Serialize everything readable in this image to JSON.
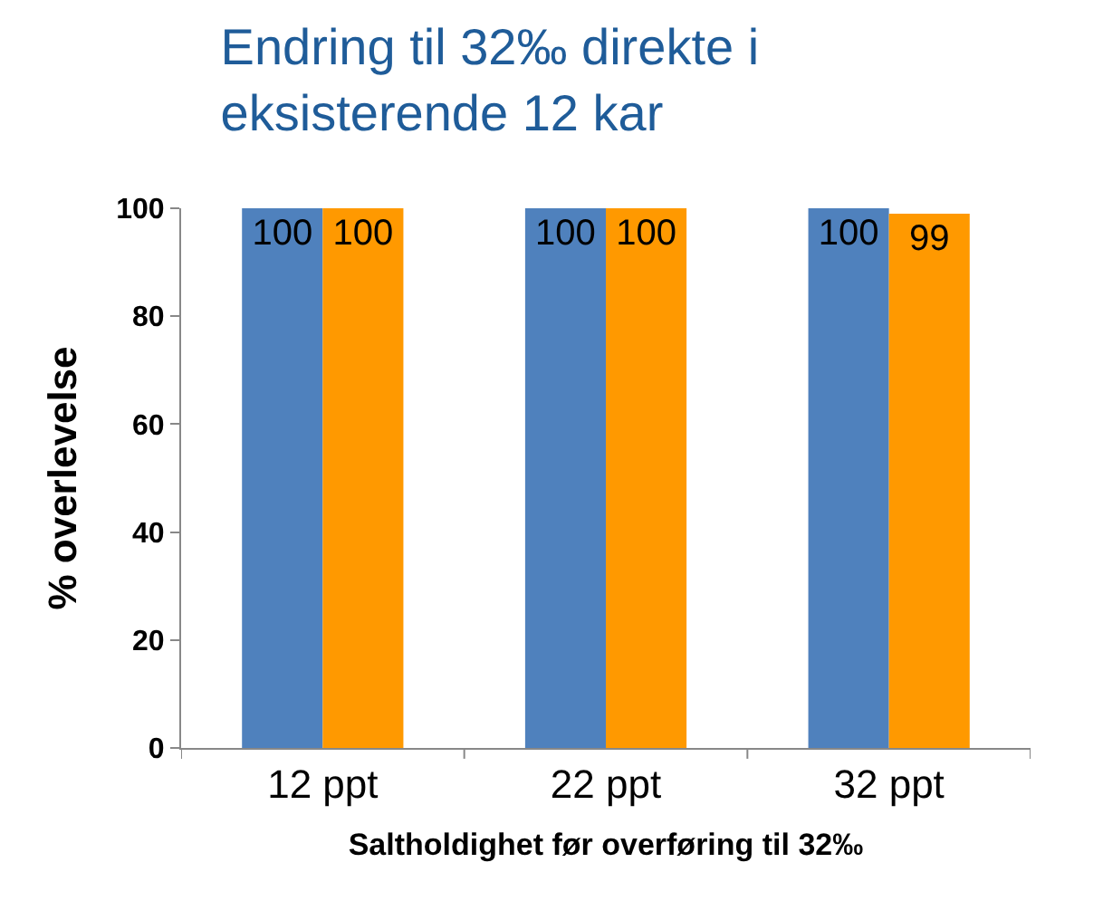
{
  "chart_data": {
    "type": "bar",
    "title": "Endring til 32‰ direkte i eksisterende 12 kar",
    "xlabel": "Saltholdighet før overføring til 32‰",
    "ylabel": "% overlevelse",
    "categories": [
      "12 ppt",
      "22 ppt",
      "32 ppt"
    ],
    "series": [
      {
        "color": "#4f81bd",
        "values": [
          100,
          100,
          100
        ]
      },
      {
        "color": "#ff9900",
        "values": [
          100,
          100,
          99
        ]
      }
    ],
    "ylim": [
      0,
      100
    ],
    "yticks": [
      0,
      20,
      40,
      60,
      80,
      100
    ],
    "data_labels": true
  }
}
